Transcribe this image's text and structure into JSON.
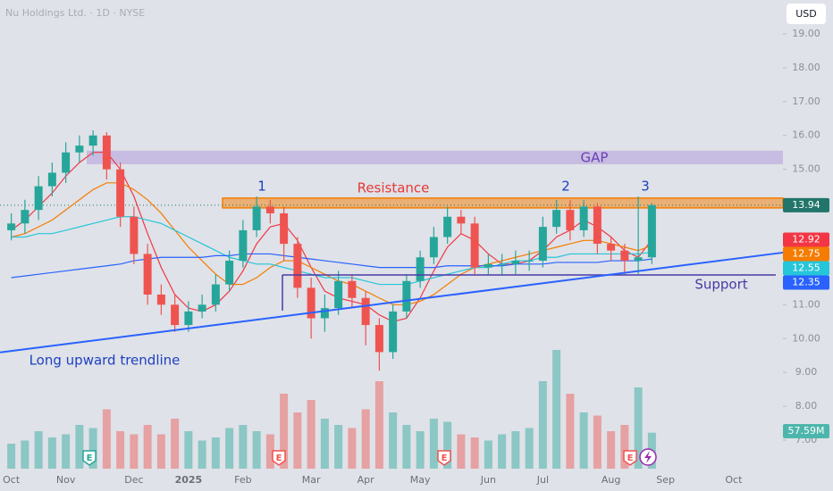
{
  "header": {
    "title": "Nu Holdings Ltd. · 1D · NYSE",
    "currency": "USD"
  },
  "chart_data": {
    "type": "candlestick",
    "categories": [
      "Oct",
      null,
      null,
      null,
      "Nov",
      null,
      null,
      null,
      null,
      "Dec",
      null,
      null,
      null,
      "2025",
      null,
      null,
      null,
      "Feb",
      null,
      null,
      null,
      null,
      "Mar",
      null,
      null,
      null,
      "Apr",
      null,
      null,
      null,
      "May",
      null,
      null,
      null,
      null,
      "Jun",
      null,
      null,
      null,
      "Jul",
      null,
      null,
      null,
      null,
      "Aug",
      null,
      null,
      null,
      "Sep",
      null,
      null,
      null,
      null,
      "Oct",
      null,
      null,
      null
    ],
    "open": [
      13.2,
      13.4,
      13.8,
      14.5,
      14.9,
      15.5,
      15.7,
      16.0,
      15.0,
      13.6,
      12.5,
      11.3,
      11.0,
      10.4,
      10.8,
      11.0,
      11.6,
      12.3,
      13.2,
      13.9,
      13.7,
      12.8,
      11.5,
      10.6,
      10.9,
      11.7,
      11.2,
      10.4,
      9.6,
      10.8,
      11.7,
      12.4,
      13.0,
      13.6,
      13.4,
      12.1,
      12.2,
      12.2,
      12.3,
      12.3,
      13.3,
      13.8,
      13.2,
      13.9,
      12.8,
      12.6,
      12.3,
      12.4,
      null,
      null,
      null,
      null,
      null,
      null,
      null,
      null,
      null
    ],
    "high": [
      13.7,
      14.1,
      14.8,
      15.2,
      15.8,
      16.0,
      16.15,
      16.1,
      15.2,
      13.9,
      12.8,
      11.6,
      11.3,
      11.1,
      11.3,
      11.9,
      12.6,
      13.5,
      14.2,
      14.1,
      13.9,
      13.0,
      11.8,
      11.3,
      12.0,
      11.9,
      11.4,
      10.6,
      11.0,
      11.9,
      12.6,
      13.3,
      13.9,
      13.8,
      13.6,
      12.5,
      12.5,
      12.6,
      12.6,
      13.6,
      14.1,
      14.1,
      14.1,
      14.0,
      13.0,
      12.8,
      14.2,
      14.0,
      null,
      null,
      null,
      null,
      null,
      null,
      null,
      null,
      null
    ],
    "low": [
      12.9,
      13.1,
      13.5,
      14.2,
      14.6,
      15.2,
      15.4,
      14.7,
      13.3,
      12.2,
      11.0,
      10.7,
      10.2,
      10.2,
      10.6,
      10.8,
      11.4,
      12.1,
      13.0,
      13.4,
      12.3,
      11.2,
      10.0,
      10.2,
      10.7,
      10.9,
      9.8,
      9.05,
      9.4,
      10.6,
      11.5,
      12.2,
      12.8,
      13.1,
      11.9,
      11.9,
      11.9,
      11.9,
      12.0,
      12.1,
      13.1,
      12.9,
      13.0,
      12.5,
      12.3,
      11.9,
      11.9,
      12.2,
      null,
      null,
      null,
      null,
      null,
      null,
      null,
      null,
      null
    ],
    "close": [
      13.4,
      13.8,
      14.5,
      14.9,
      15.5,
      15.7,
      16.0,
      15.0,
      13.6,
      12.5,
      11.3,
      11.0,
      10.4,
      10.8,
      11.0,
      11.6,
      12.3,
      13.2,
      13.9,
      13.7,
      12.8,
      11.5,
      10.6,
      10.9,
      11.7,
      11.2,
      10.4,
      9.6,
      10.8,
      11.7,
      12.4,
      13.0,
      13.6,
      13.4,
      12.1,
      12.2,
      12.2,
      12.3,
      12.3,
      13.3,
      13.8,
      13.2,
      13.9,
      12.8,
      12.6,
      12.3,
      12.4,
      13.94,
      null,
      null,
      null,
      null,
      null,
      null,
      null,
      null,
      null
    ],
    "up_color": "#26a69a",
    "down_color": "#ef5350",
    "volume": {
      "values": [
        40,
        45,
        60,
        50,
        55,
        70,
        65,
        95,
        60,
        55,
        70,
        55,
        80,
        60,
        45,
        50,
        65,
        70,
        60,
        55,
        120,
        90,
        110,
        80,
        70,
        65,
        95,
        140,
        90,
        70,
        60,
        80,
        75,
        55,
        50,
        45,
        55,
        60,
        65,
        140,
        190,
        120,
        90,
        85,
        60,
        70,
        130,
        57.59,
        null,
        null,
        null,
        null,
        null,
        null,
        null,
        null,
        null
      ],
      "value_labels": [
        null,
        null,
        null,
        null,
        null,
        null,
        null,
        null,
        null,
        null,
        null,
        null,
        null,
        null,
        null,
        null,
        null,
        null,
        null,
        null,
        null,
        null,
        null,
        null,
        null,
        null,
        null,
        null,
        null,
        null,
        null,
        null,
        null,
        null,
        null,
        null,
        null,
        null,
        null,
        null,
        null,
        null,
        null,
        null,
        null,
        null,
        null,
        "57.59M",
        null,
        null,
        null,
        null,
        null,
        null,
        null,
        null,
        null
      ],
      "tag_color": "#4db6ac"
    },
    "moving_averages": [
      {
        "color": "#f23645",
        "values": [
          13.2,
          13.5,
          13.9,
          14.3,
          14.8,
          15.2,
          15.5,
          15.5,
          15.0,
          14.2,
          13.1,
          12.1,
          11.3,
          10.9,
          10.8,
          11.0,
          11.4,
          12.0,
          12.8,
          13.3,
          13.4,
          12.9,
          12.1,
          11.4,
          11.2,
          11.1,
          11.0,
          10.7,
          10.5,
          10.6,
          11.2,
          12.0,
          12.7,
          13.1,
          12.9,
          12.5,
          12.2,
          12.2,
          12.3,
          12.6,
          13.0,
          13.2,
          13.5,
          13.3,
          13.0,
          12.6,
          12.4,
          12.92,
          null,
          null,
          null,
          null,
          null,
          null,
          null,
          null,
          null
        ]
      },
      {
        "color": "#f57c00",
        "values": [
          13.0,
          13.1,
          13.3,
          13.5,
          13.8,
          14.1,
          14.4,
          14.6,
          14.6,
          14.4,
          14.1,
          13.7,
          13.2,
          12.7,
          12.3,
          11.9,
          11.6,
          11.6,
          11.8,
          12.1,
          12.3,
          12.3,
          12.1,
          11.9,
          11.7,
          11.6,
          11.4,
          11.2,
          11.0,
          11.0,
          11.1,
          11.3,
          11.6,
          11.9,
          12.1,
          12.2,
          12.3,
          12.4,
          12.5,
          12.6,
          12.7,
          12.8,
          12.9,
          12.9,
          12.8,
          12.7,
          12.6,
          12.75,
          null,
          null,
          null,
          null,
          null,
          null,
          null,
          null,
          null
        ]
      },
      {
        "color": "#26c6da",
        "values": [
          13.0,
          13.0,
          13.1,
          13.1,
          13.2,
          13.3,
          13.4,
          13.5,
          13.6,
          13.6,
          13.5,
          13.4,
          13.2,
          13.0,
          12.8,
          12.6,
          12.4,
          12.3,
          12.2,
          12.2,
          12.1,
          12.0,
          11.9,
          11.8,
          11.8,
          11.8,
          11.7,
          11.6,
          11.6,
          11.6,
          11.7,
          11.8,
          11.9,
          12.0,
          12.1,
          12.1,
          12.2,
          12.3,
          12.3,
          12.4,
          12.4,
          12.5,
          12.5,
          12.5,
          12.5,
          12.5,
          12.5,
          12.55,
          null,
          null,
          null,
          null,
          null,
          null,
          null,
          null,
          null
        ]
      },
      {
        "color": "#2962ff",
        "values": [
          11.8,
          11.85,
          11.9,
          11.95,
          12.0,
          12.05,
          12.1,
          12.15,
          12.2,
          12.3,
          12.35,
          12.4,
          12.4,
          12.4,
          12.4,
          12.45,
          12.45,
          12.5,
          12.5,
          12.5,
          12.45,
          12.4,
          12.35,
          12.3,
          12.25,
          12.2,
          12.15,
          12.1,
          12.1,
          12.1,
          12.1,
          12.1,
          12.15,
          12.15,
          12.15,
          12.15,
          12.15,
          12.2,
          12.2,
          12.2,
          12.25,
          12.25,
          12.25,
          12.25,
          12.3,
          12.3,
          12.3,
          12.35,
          null,
          null,
          null,
          null,
          null,
          null,
          null,
          null,
          null
        ]
      }
    ],
    "ylim": [
      6.55,
      19.4
    ],
    "yticks": [
      {
        "value": 7,
        "label": "7.00"
      },
      {
        "value": 8,
        "label": "8.00"
      },
      {
        "value": 9,
        "label": "9.00"
      },
      {
        "value": 10,
        "label": "10.00"
      },
      {
        "value": 11,
        "label": "11.00"
      },
      {
        "value": 12,
        "label": "12.00"
      },
      {
        "value": 13,
        "label": "13.00"
      },
      {
        "value": 14,
        "label": "14.00"
      },
      {
        "value": 15,
        "label": "15.00"
      },
      {
        "value": 16,
        "label": "16.00"
      },
      {
        "value": 17,
        "label": "17.00"
      },
      {
        "value": 18,
        "label": "18.00"
      },
      {
        "value": 19,
        "label": "19.00"
      }
    ],
    "last_price_color": "#22756a",
    "annotations": {
      "gap": {
        "label": "GAP",
        "low": 15.15,
        "high": 15.55,
        "color": "#b39ddb"
      },
      "resistance": {
        "label": "Resistance",
        "low": 13.86,
        "high": 14.15,
        "color": "#f57c00"
      },
      "support": {
        "label": "Support",
        "value": 11.88,
        "color": "#4a3aa8"
      },
      "trendline": {
        "label": "Long upward trendline",
        "start": 9.59,
        "end": 12.54,
        "color": "#2962ff"
      },
      "peaks": [
        "1",
        "2",
        "3"
      ]
    },
    "events": [
      {
        "label": "E",
        "color": "#26a69a"
      },
      {
        "label": "E",
        "color": "#ef5350"
      },
      {
        "label": "E",
        "color": "#ef5350"
      },
      {
        "label": "E",
        "color": "#ef5350"
      }
    ]
  }
}
